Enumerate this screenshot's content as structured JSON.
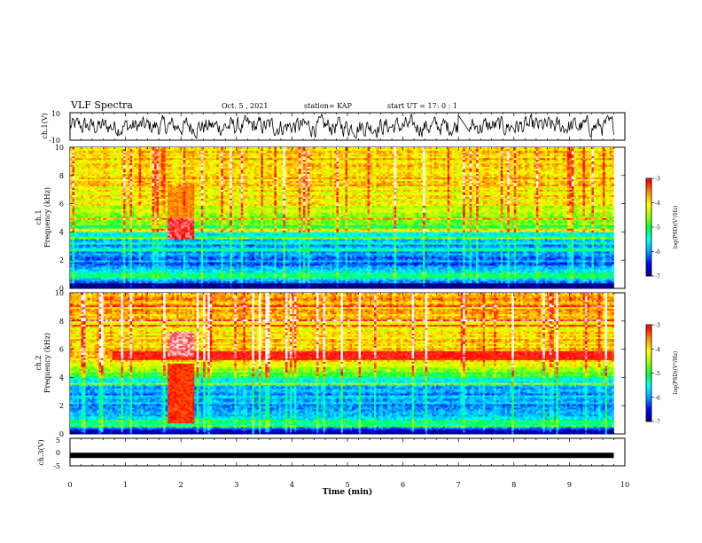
{
  "header": {
    "title": "VLF Spectra",
    "date": "Oct. 5  , 2021",
    "station": "station= KAP",
    "start": "start  UT  =   17: 0  : 1"
  },
  "chart_data": [
    {
      "type": "line",
      "name": "ch1-waveform",
      "ylabel": "ch.1(V)",
      "ylim": [
        -10,
        10
      ],
      "ytick_labels": [
        "10",
        "-10"
      ],
      "xlim": [
        0,
        10
      ],
      "data_extent_min": 9.8
    },
    {
      "type": "heatmap",
      "name": "ch1-spectrogram",
      "ylabel_top": "ch.1",
      "ylabel": "Frequency  (kHz)",
      "ylim": [
        0,
        10
      ],
      "yticks": [
        0,
        2,
        4,
        6,
        8,
        10
      ],
      "xlim": [
        0,
        10
      ],
      "data_extent_min": 9.8,
      "bands_kHz": [
        {
          "f": 0.3,
          "level": 0.0
        },
        {
          "f": 0.8,
          "level": 0.45
        },
        {
          "f": 1.5,
          "level": 0.2
        },
        {
          "f": 2.5,
          "level": 0.22
        },
        {
          "f": 3.1,
          "level": 0.2
        },
        {
          "f": 4.2,
          "level": 0.45
        },
        {
          "f": 5.5,
          "level": 0.62
        },
        {
          "f": 7.5,
          "level": 0.7
        },
        {
          "f": 9.6,
          "level": 0.72
        }
      ],
      "events": [
        {
          "start_min": 1.75,
          "end_min": 2.25,
          "f_min": 3.5,
          "f_max": 5.0,
          "level": 0.92
        },
        {
          "start_min": 1.75,
          "end_min": 2.25,
          "f_min": 5.0,
          "f_max": 7.2,
          "level": 0.78
        }
      ]
    },
    {
      "type": "heatmap",
      "name": "ch2-spectrogram",
      "ylabel_top": "ch.2",
      "ylabel": "Frequency  (kHz)",
      "ylim": [
        0,
        10
      ],
      "yticks": [
        0,
        2,
        4,
        6,
        8,
        10
      ],
      "xlim": [
        0,
        10
      ],
      "data_extent_min": 9.8,
      "bands_kHz": [
        {
          "f": 0.3,
          "level": 0.05
        },
        {
          "f": 0.8,
          "level": 0.45
        },
        {
          "f": 1.5,
          "level": 0.22
        },
        {
          "f": 2.5,
          "level": 0.25
        },
        {
          "f": 3.2,
          "level": 0.22
        },
        {
          "f": 4.3,
          "level": 0.5
        },
        {
          "f": 5.4,
          "level": 0.72
        },
        {
          "f": 7.5,
          "level": 0.7
        },
        {
          "f": 9.6,
          "level": 0.75
        }
      ],
      "events": [
        {
          "start_min": 1.75,
          "end_min": 2.25,
          "f_min": 0.8,
          "f_max": 5.0,
          "level": 0.85
        },
        {
          "start_min": 1.75,
          "end_min": 2.25,
          "f_min": 5.5,
          "f_max": 7.2,
          "level": 0.95
        },
        {
          "start_min": 0.75,
          "end_min": 9.8,
          "f_min": 5.3,
          "f_max": 5.9,
          "level": 0.88
        }
      ]
    },
    {
      "type": "line",
      "name": "ch3-waveform",
      "ylabel": "ch.3(V)",
      "ylim": [
        -5,
        5
      ],
      "ytick_labels": [
        "5",
        "0",
        "-5"
      ],
      "xlim": [
        0,
        10
      ],
      "data_extent_min": 9.8,
      "level_V": -1.2
    }
  ],
  "x_axis": {
    "label": "Time  (min)",
    "ticks": [
      "0",
      "1",
      "2",
      "3",
      "4",
      "5",
      "6",
      "7",
      "8",
      "9",
      "10"
    ]
  },
  "colorbars": [
    {
      "name": "ch1",
      "label": "log(PSD)(V²/Hz)",
      "min": -7,
      "max": -3,
      "tick_labels": [
        "-3",
        "-4",
        "-5",
        "-6",
        "-7"
      ]
    },
    {
      "name": "ch2",
      "label": "log(PSD)(V²/Hz)",
      "min": -7,
      "max": -3,
      "tick_labels": [
        "-3",
        "-4",
        "-5",
        "-6",
        "-7"
      ]
    }
  ],
  "colormap": [
    "#000080",
    "#0000ff",
    "#00a0ff",
    "#00ffff",
    "#00ff40",
    "#a0ff00",
    "#ffff00",
    "#ff9000",
    "#ff0000",
    "#ffffff"
  ]
}
